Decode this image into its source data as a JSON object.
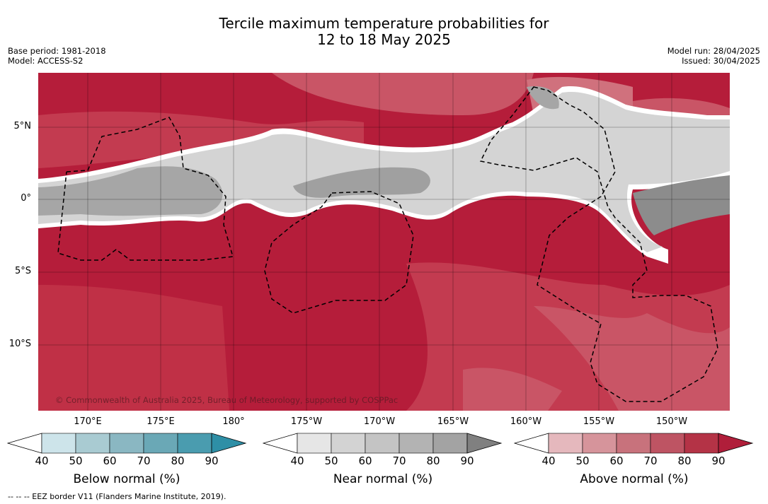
{
  "header": {
    "title_line1": "Tercile maximum temperature probabilities for",
    "title_line2": "12 to 18 May 2025",
    "base_period": "Base period: 1981-2018",
    "model": "Model: ACCESS-S2",
    "model_run": "Model run: 28/04/2025",
    "issued": "Issued: 30/04/2025"
  },
  "map": {
    "lat_labels": [
      "5°N",
      "0°",
      "5°S",
      "10°S"
    ],
    "lon_labels": [
      "170°E",
      "175°E",
      "180°",
      "175°W",
      "170°W",
      "165°W",
      "160°W",
      "155°W",
      "150°W"
    ],
    "credit": "© Commonwealth of Australia 2025, Bureau of Meteorology, supported by COSPPac"
  },
  "colorbars": [
    {
      "label": "Below normal (%)",
      "ticks": [
        "40",
        "50",
        "60",
        "70",
        "80",
        "90"
      ],
      "colors": [
        "#cde4ea",
        "#a9cbd2",
        "#8ab7c2",
        "#6aa8b6",
        "#4a9caf",
        "#2e8fa6"
      ]
    },
    {
      "label": "Near normal (%)",
      "ticks": [
        "40",
        "50",
        "60",
        "70",
        "80",
        "90"
      ],
      "colors": [
        "#e6e6e6",
        "#d3d3d3",
        "#c4c4c4",
        "#b3b3b3",
        "#a3a3a3",
        "#808080"
      ]
    },
    {
      "label": "Above normal (%)",
      "ticks": [
        "40",
        "50",
        "60",
        "70",
        "80",
        "90"
      ],
      "colors": [
        "#e5b8bd",
        "#d6949b",
        "#c8727c",
        "#be5463",
        "#b43346",
        "#b01e3a"
      ]
    }
  ],
  "footnote": "--  --  -- EEZ border V11 (Flanders Marine Institute, 2019).",
  "colors": {
    "above_strong": "#b51d3a",
    "above_mid": "#c33b50",
    "above_light": "#d0717d",
    "near_light": "#d6d6d6",
    "near_dark": "#9a9a9a"
  }
}
